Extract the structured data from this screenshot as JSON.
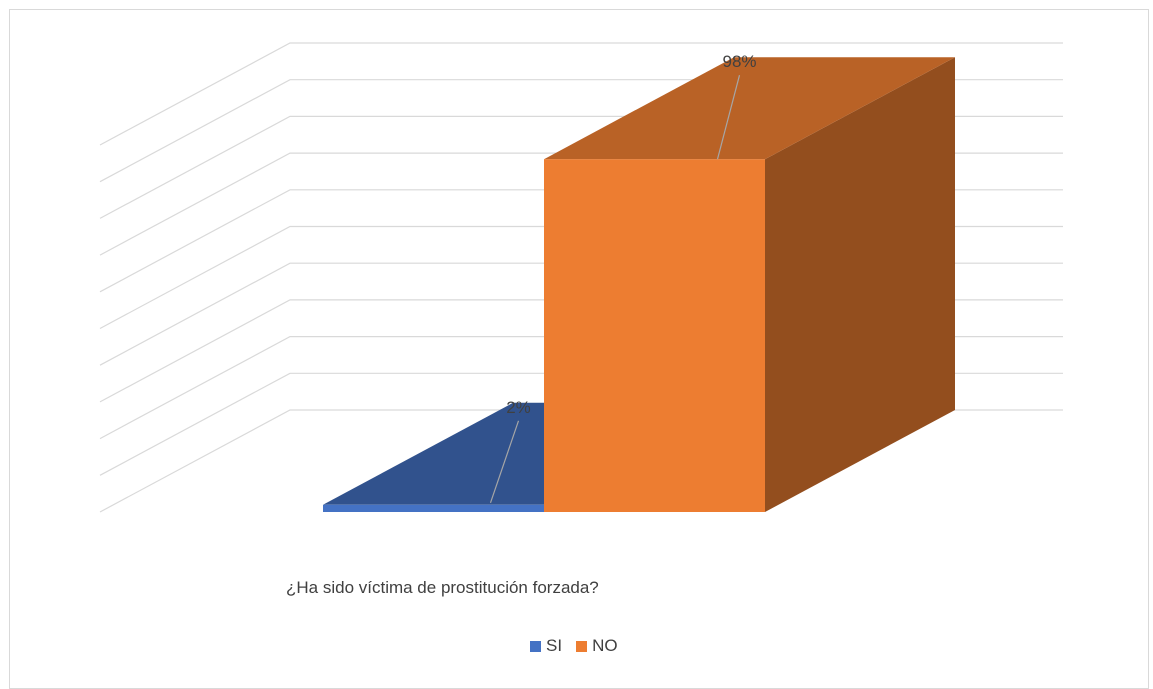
{
  "chart_data": {
    "type": "bar",
    "subtype": "3d-column",
    "categories": [
      "¿Ha sido víctima de prostitución forzada?"
    ],
    "series": [
      {
        "name": "SI",
        "values": [
          2
        ],
        "label": "2%",
        "color": "#4472C4"
      },
      {
        "name": "NO",
        "values": [
          98
        ],
        "label": "98%",
        "color": "#ED7D31"
      }
    ],
    "ylim": [
      0,
      100
    ],
    "grid": true,
    "legend_position": "bottom"
  },
  "labels": {
    "category": "¿Ha sido víctima de prostitución forzada?"
  }
}
